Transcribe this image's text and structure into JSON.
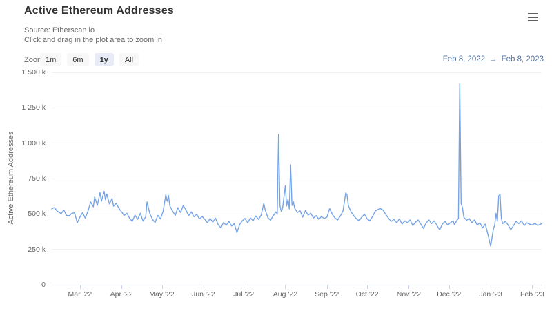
{
  "header": {
    "title": "Active Ethereum Addresses",
    "subtitle_line1": "Source: Etherscan.io",
    "subtitle_line2": "Click and drag in the plot area to zoom in"
  },
  "toolbar": {
    "zoom_label": "Zoom",
    "buttons": [
      {
        "label": "1m",
        "selected": false
      },
      {
        "label": "6m",
        "selected": false
      },
      {
        "label": "1y",
        "selected": true
      },
      {
        "label": "All",
        "selected": false
      }
    ],
    "range": {
      "from": "Feb 8, 2022",
      "separator": "→",
      "to": "Feb 8, 2023"
    }
  },
  "chart_data": {
    "type": "line",
    "title": "Active Ethereum Addresses",
    "ylabel": "Active Ethereum Addresses",
    "xlabel": "",
    "ylim": [
      0,
      1500
    ],
    "y_unit": "thousand addresses (k)",
    "y_ticks": [
      {
        "value": 0,
        "label": "0"
      },
      {
        "value": 250,
        "label": "250 k"
      },
      {
        "value": 500,
        "label": "500 k"
      },
      {
        "value": 750,
        "label": "750 k"
      },
      {
        "value": 1000,
        "label": "1 000 k"
      },
      {
        "value": 1250,
        "label": "1 250 k"
      },
      {
        "value": 1500,
        "label": "1 500 k"
      }
    ],
    "x_unit": "days since Feb 8, 2022",
    "x_range_days": [
      0,
      365
    ],
    "x_ticks": [
      {
        "day": 21,
        "label": "Mar '22"
      },
      {
        "day": 52,
        "label": "Apr '22"
      },
      {
        "day": 82,
        "label": "May '22"
      },
      {
        "day": 113,
        "label": "Jun '22"
      },
      {
        "day": 143,
        "label": "Jul '22"
      },
      {
        "day": 174,
        "label": "Aug '22"
      },
      {
        "day": 205,
        "label": "Sep '22"
      },
      {
        "day": 235,
        "label": "Oct '22"
      },
      {
        "day": 266,
        "label": "Nov '22"
      },
      {
        "day": 296,
        "label": "Dec '22"
      },
      {
        "day": 327,
        "label": "Jan '23"
      },
      {
        "day": 358,
        "label": "Feb '23"
      }
    ],
    "line_color": "#75a3e6",
    "grid_color": "#f0f0f0",
    "legend": "off",
    "grid": "horizontal only",
    "points": [
      [
        0,
        536
      ],
      [
        2,
        545
      ],
      [
        4,
        520
      ],
      [
        7,
        502
      ],
      [
        9,
        528
      ],
      [
        11,
        490
      ],
      [
        13,
        487
      ],
      [
        15,
        505
      ],
      [
        17,
        508
      ],
      [
        19,
        438
      ],
      [
        21,
        478
      ],
      [
        23,
        510
      ],
      [
        25,
        470
      ],
      [
        27,
        520
      ],
      [
        29,
        585
      ],
      [
        31,
        550
      ],
      [
        32,
        620
      ],
      [
        34,
        560
      ],
      [
        36,
        650
      ],
      [
        37,
        590
      ],
      [
        39,
        660
      ],
      [
        40,
        600
      ],
      [
        41,
        640
      ],
      [
        43,
        570
      ],
      [
        45,
        610
      ],
      [
        46,
        555
      ],
      [
        48,
        575
      ],
      [
        50,
        540
      ],
      [
        52,
        515
      ],
      [
        54,
        490
      ],
      [
        56,
        505
      ],
      [
        58,
        470
      ],
      [
        60,
        448
      ],
      [
        62,
        492
      ],
      [
        64,
        462
      ],
      [
        66,
        505
      ],
      [
        68,
        450
      ],
      [
        70,
        480
      ],
      [
        71,
        585
      ],
      [
        73,
        505
      ],
      [
        75,
        462
      ],
      [
        77,
        440
      ],
      [
        79,
        490
      ],
      [
        81,
        465
      ],
      [
        83,
        520
      ],
      [
        85,
        636
      ],
      [
        86,
        590
      ],
      [
        87,
        630
      ],
      [
        88,
        556
      ],
      [
        90,
        520
      ],
      [
        92,
        490
      ],
      [
        94,
        545
      ],
      [
        96,
        510
      ],
      [
        98,
        560
      ],
      [
        100,
        528
      ],
      [
        102,
        488
      ],
      [
        104,
        515
      ],
      [
        106,
        480
      ],
      [
        108,
        498
      ],
      [
        110,
        465
      ],
      [
        112,
        482
      ],
      [
        114,
        462
      ],
      [
        116,
        438
      ],
      [
        118,
        468
      ],
      [
        120,
        442
      ],
      [
        122,
        470
      ],
      [
        124,
        425
      ],
      [
        126,
        402
      ],
      [
        128,
        440
      ],
      [
        130,
        420
      ],
      [
        132,
        448
      ],
      [
        134,
        415
      ],
      [
        136,
        432
      ],
      [
        138,
        368
      ],
      [
        140,
        425
      ],
      [
        142,
        452
      ],
      [
        144,
        468
      ],
      [
        146,
        438
      ],
      [
        148,
        472
      ],
      [
        150,
        452
      ],
      [
        152,
        486
      ],
      [
        154,
        462
      ],
      [
        156,
        492
      ],
      [
        158,
        574
      ],
      [
        159,
        530
      ],
      [
        161,
        474
      ],
      [
        163,
        456
      ],
      [
        165,
        488
      ],
      [
        167,
        515
      ],
      [
        168,
        498
      ],
      [
        169,
        1062
      ],
      [
        170,
        560
      ],
      [
        171,
        518
      ],
      [
        172,
        542
      ],
      [
        174,
        700
      ],
      [
        175,
        556
      ],
      [
        176,
        604
      ],
      [
        177,
        536
      ],
      [
        178,
        848
      ],
      [
        179,
        560
      ],
      [
        180,
        588
      ],
      [
        181,
        540
      ],
      [
        183,
        510
      ],
      [
        185,
        522
      ],
      [
        187,
        478
      ],
      [
        189,
        524
      ],
      [
        191,
        492
      ],
      [
        193,
        505
      ],
      [
        195,
        472
      ],
      [
        197,
        488
      ],
      [
        199,
        462
      ],
      [
        201,
        482
      ],
      [
        203,
        468
      ],
      [
        205,
        478
      ],
      [
        207,
        538
      ],
      [
        209,
        498
      ],
      [
        211,
        472
      ],
      [
        213,
        458
      ],
      [
        215,
        486
      ],
      [
        217,
        520
      ],
      [
        219,
        648
      ],
      [
        220,
        636
      ],
      [
        221,
        558
      ],
      [
        223,
        515
      ],
      [
        225,
        488
      ],
      [
        227,
        465
      ],
      [
        229,
        452
      ],
      [
        231,
        478
      ],
      [
        233,
        498
      ],
      [
        235,
        465
      ],
      [
        237,
        452
      ],
      [
        239,
        482
      ],
      [
        241,
        520
      ],
      [
        243,
        532
      ],
      [
        245,
        538
      ],
      [
        247,
        525
      ],
      [
        249,
        495
      ],
      [
        251,
        468
      ],
      [
        253,
        448
      ],
      [
        255,
        462
      ],
      [
        257,
        438
      ],
      [
        259,
        465
      ],
      [
        261,
        428
      ],
      [
        263,
        452
      ],
      [
        265,
        438
      ],
      [
        267,
        458
      ],
      [
        269,
        418
      ],
      [
        271,
        442
      ],
      [
        273,
        458
      ],
      [
        275,
        428
      ],
      [
        277,
        398
      ],
      [
        279,
        438
      ],
      [
        281,
        458
      ],
      [
        283,
        432
      ],
      [
        285,
        452
      ],
      [
        287,
        418
      ],
      [
        289,
        388
      ],
      [
        291,
        428
      ],
      [
        293,
        448
      ],
      [
        295,
        422
      ],
      [
        297,
        438
      ],
      [
        299,
        452
      ],
      [
        300,
        424
      ],
      [
        302,
        458
      ],
      [
        303,
        468
      ],
      [
        304,
        1420
      ],
      [
        305,
        575
      ],
      [
        306,
        545
      ],
      [
        307,
        478
      ],
      [
        309,
        455
      ],
      [
        311,
        468
      ],
      [
        313,
        438
      ],
      [
        315,
        458
      ],
      [
        317,
        422
      ],
      [
        319,
        438
      ],
      [
        321,
        402
      ],
      [
        323,
        428
      ],
      [
        325,
        355
      ],
      [
        327,
        272
      ],
      [
        328,
        330
      ],
      [
        329,
        392
      ],
      [
        330,
        420
      ],
      [
        331,
        505
      ],
      [
        332,
        448
      ],
      [
        333,
        628
      ],
      [
        334,
        638
      ],
      [
        335,
        468
      ],
      [
        336,
        432
      ],
      [
        338,
        448
      ],
      [
        340,
        422
      ],
      [
        342,
        388
      ],
      [
        344,
        418
      ],
      [
        346,
        448
      ],
      [
        348,
        432
      ],
      [
        350,
        452
      ],
      [
        352,
        418
      ],
      [
        354,
        438
      ],
      [
        356,
        428
      ],
      [
        358,
        422
      ],
      [
        360,
        434
      ],
      [
        362,
        419
      ],
      [
        364,
        428
      ],
      [
        365,
        430
      ]
    ]
  }
}
